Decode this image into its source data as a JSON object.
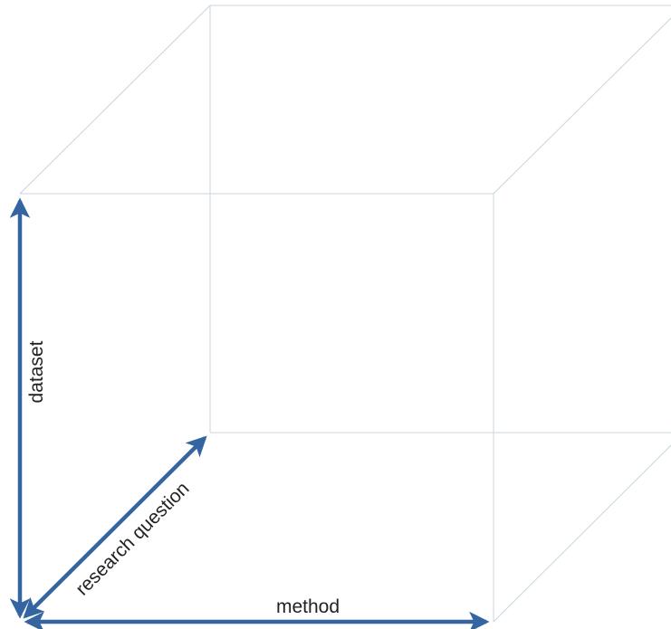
{
  "diagram": {
    "type": "3d-cube-axes",
    "edge_color": "#c9d5dc",
    "axis_color": "#3565a0",
    "labels": {
      "vertical_axis": "dataset",
      "horizontal_axis": "method",
      "depth_axis": "research question"
    }
  }
}
